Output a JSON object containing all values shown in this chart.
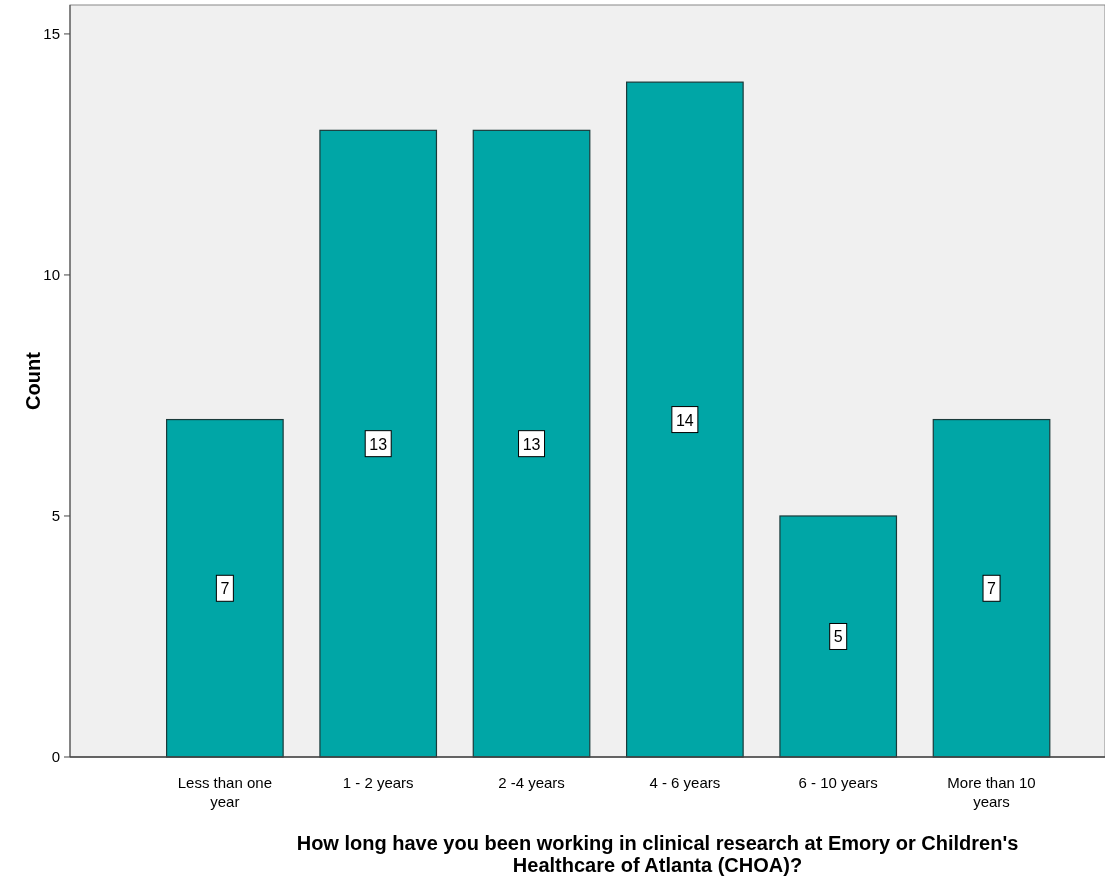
{
  "chart_data": {
    "type": "bar",
    "xlabel": "How long have you been working in clinical research at Emory or Children's Healthcare of Atlanta (CHOA)?",
    "ylabel": "Count",
    "categories": [
      "Less than one year",
      "1 - 2 years",
      "2 -4 years",
      "4 - 6 years",
      "6 - 10 years",
      "More than 10 years"
    ],
    "values": [
      7,
      13,
      13,
      14,
      5,
      7
    ],
    "color": "#00a6a6",
    "ylim": [
      0,
      15.6
    ],
    "yticks": [
      0,
      5,
      10,
      15
    ],
    "data_labels": true
  }
}
